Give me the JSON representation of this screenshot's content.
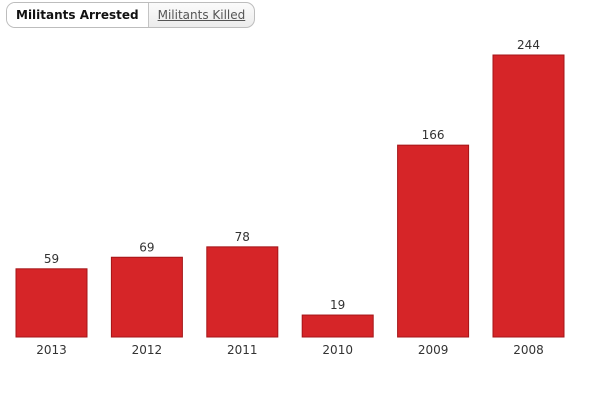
{
  "tabs": [
    {
      "label": "Militants Arrested",
      "active": true
    },
    {
      "label": "Militants Killed",
      "active": false
    }
  ],
  "colors": {
    "bar": "#d62528",
    "bar_stroke": "#a51417"
  },
  "chart_data": {
    "type": "bar",
    "title": "",
    "xlabel": "",
    "ylabel": "",
    "categories": [
      "2013",
      "2012",
      "2011",
      "2010",
      "2009",
      "2008"
    ],
    "values": [
      59,
      69,
      78,
      19,
      166,
      244
    ],
    "ylim": [
      0,
      244
    ],
    "grid": false,
    "legend": "none"
  }
}
